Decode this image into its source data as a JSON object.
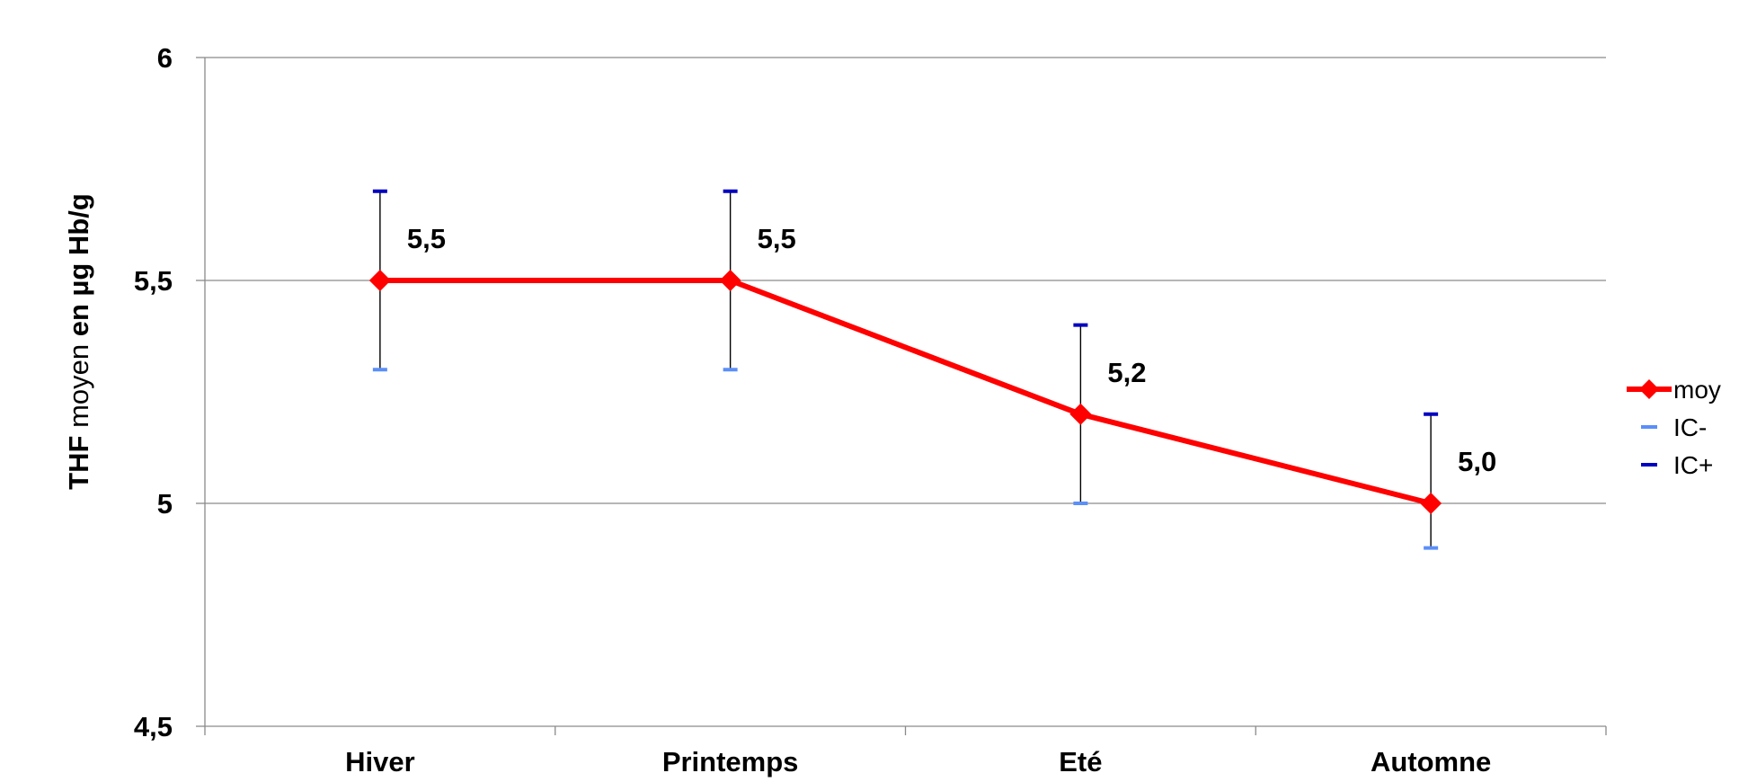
{
  "chart_data": {
    "type": "line",
    "categories": [
      "Hiver",
      "Printemps",
      "Eté",
      "Automne"
    ],
    "series": [
      {
        "name": "moy",
        "values": [
          5.5,
          5.5,
          5.2,
          5.0
        ],
        "color": "#ff0000",
        "marker": "diamond"
      },
      {
        "name": "IC-",
        "values": [
          5.3,
          5.3,
          5.0,
          4.9
        ],
        "color": "#5b8ff9",
        "marker": "dash"
      },
      {
        "name": "IC+",
        "values": [
          5.7,
          5.7,
          5.4,
          5.2
        ],
        "color": "#0000c0",
        "marker": "dash"
      }
    ],
    "data_labels": [
      "5,5",
      "5,5",
      "5,2",
      "5,0"
    ],
    "ylabel_parts": [
      {
        "text": "THF",
        "bold": true
      },
      {
        "text": " moyen ",
        "bold": false
      },
      {
        "text": "en µg Hb/g",
        "bold": true
      }
    ],
    "xlabel": "",
    "ylim": [
      4.5,
      6
    ],
    "yticks": [
      4.5,
      5,
      5.5,
      6
    ],
    "ytick_labels": [
      "4,5",
      "5",
      "5,5",
      "6"
    ],
    "grid": "horizontal",
    "legend_position": "right",
    "legend": [
      "moy",
      "IC-",
      "IC+"
    ],
    "error_bar_color": "#000000"
  }
}
